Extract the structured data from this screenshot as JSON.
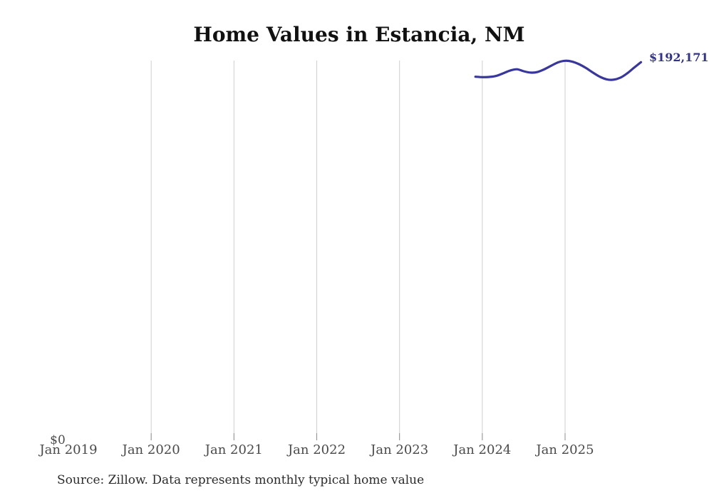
{
  "page": {
    "title": "Home Values in Estancia, NM",
    "source_note": "Source: Zillow. Data represents monthly typical home value"
  },
  "chart_data": {
    "type": "line",
    "title": "Home Values in Estancia, NM",
    "series_name": "Monthly typical home value",
    "x": [
      "Dec 2023",
      "Jan 2024",
      "Feb 2024",
      "Mar 2024",
      "Apr 2024",
      "May 2024",
      "Jun 2024",
      "Jul 2024",
      "Aug 2024",
      "Sep 2024",
      "Oct 2024",
      "Nov 2024",
      "Dec 2024",
      "Jan 2025",
      "Feb 2025",
      "Mar 2025",
      "Apr 2025",
      "May 2025",
      "Jun 2025",
      "Jul 2025",
      "Aug 2025",
      "Sep 2025",
      "Oct 2025",
      "Nov 2025",
      "Dec 2025"
    ],
    "values": [
      184800,
      184600,
      184700,
      185200,
      186500,
      187900,
      188600,
      187600,
      186900,
      187200,
      188600,
      190400,
      192100,
      192900,
      192500,
      191200,
      189300,
      187000,
      184900,
      183500,
      183300,
      184300,
      186500,
      189400,
      192171
    ],
    "x_tick_labels": [
      "Jan 2019",
      "Jan 2020",
      "Jan 2021",
      "Jan 2022",
      "Jan 2023",
      "Jan 2024",
      "Jan 2025"
    ],
    "gridline_tick_labels": [
      "Jan 2020",
      "Jan 2021",
      "Jan 2022",
      "Jan 2023",
      "Jan 2024",
      "Jan 2025"
    ],
    "y_zero_label": "$0",
    "latest_value_label": "$192,171",
    "ylim": [
      0,
      193000
    ],
    "x_range": [
      "Jan 2019",
      "Dec 2025"
    ],
    "legend_position": "none",
    "grid": "vertical-year-gridlines"
  },
  "colors": {
    "line": "#37379e",
    "latest_value_text": "#32328f",
    "gridline": "#cfcfcf",
    "axis_tick": "#8f8f8f",
    "axis_text": "#4a4a4a",
    "title_text": "#111111",
    "source_text": "#2b2b2b"
  }
}
